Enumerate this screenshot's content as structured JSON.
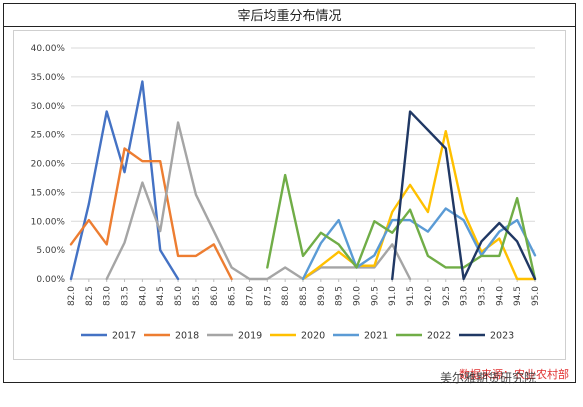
{
  "chart_data": {
    "type": "line",
    "title": "宰后均重分布情况",
    "x": [
      "82.0",
      "82.5",
      "83.0",
      "83.5",
      "84.0",
      "84.5",
      "85.0",
      "85.5",
      "86.0",
      "86.5",
      "87.0",
      "87.5",
      "88.0",
      "88.5",
      "89.0",
      "89.5",
      "90.0",
      "90.5",
      "91.0",
      "91.5",
      "92.0",
      "92.5",
      "93.0",
      "93.5",
      "94.0",
      "94.5",
      "95.0"
    ],
    "ylim": [
      0,
      0.4
    ],
    "yticks": [
      "0.00%",
      "5.00%",
      "10.00%",
      "15.00%",
      "20.00%",
      "25.00%",
      "30.00%",
      "35.00%",
      "40.00%"
    ],
    "grid": "horizontal",
    "legend_position": "bottom",
    "series": [
      {
        "name": "2017",
        "color": "#4472C4",
        "values": [
          0,
          0.13,
          0.29,
          0.185,
          0.342,
          0.05,
          0,
          null,
          null,
          null,
          null,
          null,
          null,
          null,
          null,
          null,
          null,
          null,
          null,
          null,
          null,
          null,
          null,
          null,
          null,
          null,
          null
        ]
      },
      {
        "name": "2018",
        "color": "#ED7D31",
        "values": [
          0.06,
          0.102,
          0.06,
          0.226,
          0.204,
          0.204,
          0.04,
          0.04,
          0.06,
          0,
          null,
          null,
          null,
          null,
          null,
          null,
          null,
          null,
          null,
          null,
          null,
          null,
          null,
          null,
          null,
          null,
          null
        ]
      },
      {
        "name": "2019",
        "color": "#A5A5A5",
        "values": [
          null,
          null,
          0,
          0.063,
          0.167,
          0.083,
          0.271,
          0.146,
          0.083,
          0.02,
          0,
          0,
          0.02,
          0,
          0.02,
          0.02,
          0.02,
          0.02,
          0.06,
          0,
          null,
          null,
          null,
          null,
          null,
          null,
          null
        ]
      },
      {
        "name": "2020",
        "color": "#FFC000",
        "values": [
          null,
          null,
          null,
          null,
          null,
          null,
          null,
          null,
          null,
          null,
          null,
          null,
          null,
          0,
          0.023,
          0.047,
          0.023,
          0.023,
          0.116,
          0.163,
          0.116,
          0.256,
          0.116,
          0.047,
          0.07,
          0,
          0
        ]
      },
      {
        "name": "2021",
        "color": "#5B9BD5",
        "values": [
          null,
          null,
          null,
          null,
          null,
          null,
          null,
          null,
          null,
          null,
          null,
          null,
          null,
          0,
          0.062,
          0.102,
          0.02,
          0.041,
          0.102,
          0.102,
          0.082,
          0.122,
          0.102,
          0.041,
          0.082,
          0.102,
          0.041
        ]
      },
      {
        "name": "2022",
        "color": "#70AD47",
        "values": [
          null,
          null,
          null,
          null,
          null,
          null,
          null,
          null,
          null,
          null,
          null,
          0.02,
          0.18,
          0.04,
          0.08,
          0.06,
          0.02,
          0.1,
          0.08,
          0.12,
          0.04,
          0.02,
          0.02,
          0.04,
          0.04,
          0.14,
          0
        ]
      },
      {
        "name": "2023",
        "color": "#203864",
        "values": [
          null,
          null,
          null,
          null,
          null,
          null,
          null,
          null,
          null,
          null,
          null,
          null,
          null,
          null,
          null,
          null,
          null,
          null,
          0,
          0.29,
          0.258,
          0.226,
          0,
          0.065,
          0.097,
          0.065,
          0
        ]
      }
    ]
  },
  "source": "数据来源：农业农村部",
  "watermark": "美尔雅期货研究院"
}
